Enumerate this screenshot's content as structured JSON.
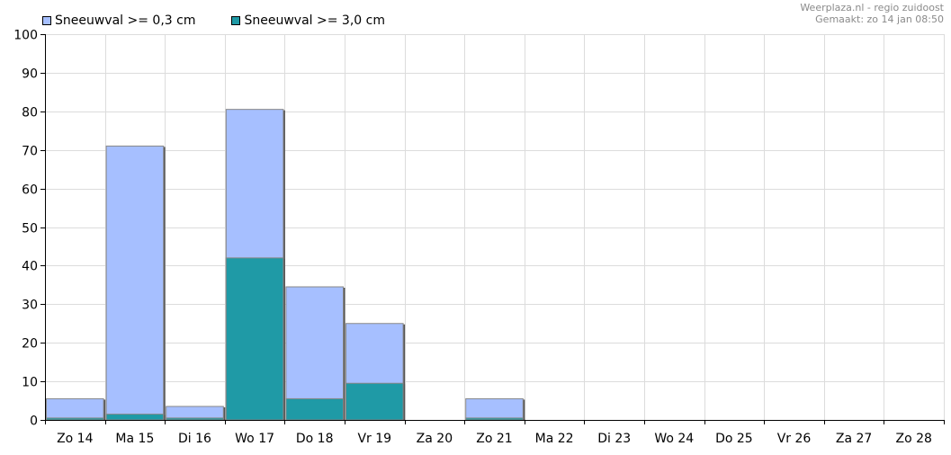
{
  "chart_data": {
    "type": "bar",
    "stacked": false,
    "overlaid": true,
    "categories": [
      "Zo 14",
      "Ma 15",
      "Di 16",
      "Wo 17",
      "Do 18",
      "Vr 19",
      "Za 20",
      "Zo 21",
      "Ma 22",
      "Di 23",
      "Wo 24",
      "Do 25",
      "Vr 26",
      "Za 27",
      "Zo 28"
    ],
    "series": [
      {
        "name": "Sneeuwval >= 0,3 cm",
        "color": "#a6bfff",
        "values": [
          5.5,
          71,
          3.5,
          80.5,
          34.5,
          25,
          0,
          5.5,
          0,
          0,
          0,
          0,
          0,
          0,
          0
        ]
      },
      {
        "name": "Sneeuwval >= 3,0 cm",
        "color": "#1f9aa6",
        "values": [
          0.5,
          1.5,
          0.5,
          42,
          5.5,
          9.5,
          0,
          0.5,
          0,
          0,
          0,
          0,
          0,
          0,
          0
        ]
      }
    ],
    "ylim": [
      0,
      100
    ],
    "yticks": [
      0,
      10,
      20,
      30,
      40,
      50,
      60,
      70,
      80,
      90,
      100
    ],
    "grid": true,
    "legend_position": "top-left",
    "xlabel": "",
    "ylabel": ""
  },
  "credits": {
    "line1": "Weerplaza.nl - regio zuidoost",
    "line2": "Gemaakt: zo 14 jan 08:50"
  }
}
